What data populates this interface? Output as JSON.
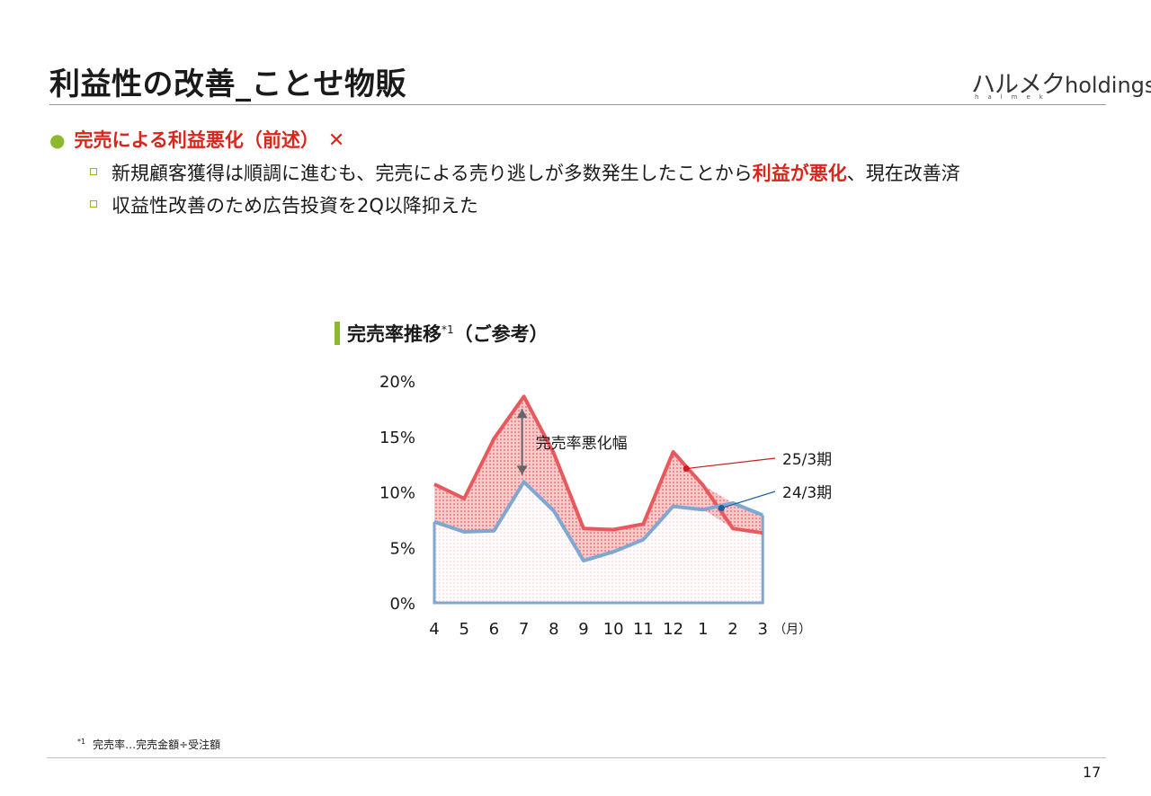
{
  "header": {
    "title": "利益性の改善_ことせ物販",
    "logo_main_jp": "ハルメク",
    "logo_main_en": "holdings",
    "logo_sub": "halmek"
  },
  "body": {
    "main_bullet": "完売による利益悪化（前述）",
    "main_bullet_mark": "✕",
    "sub1_before": "新規顧客獲得は順調に進むも、完売による売り逃しが多数発生したことから",
    "sub1_emph": "利益が悪化",
    "sub1_after": "、現在改善済",
    "sub2": "収益性改善のため広告投資を2Q以降抑えた"
  },
  "chart_section": {
    "title": "完売率推移",
    "title_note": "*1",
    "title_suffix": "（ご参考）"
  },
  "chart_data": {
    "type": "area",
    "categories": [
      "4",
      "5",
      "6",
      "7",
      "8",
      "9",
      "10",
      "11",
      "12",
      "1",
      "2",
      "3"
    ],
    "x_unit": "（月）",
    "y_ticks": [
      "0%",
      "5%",
      "10%",
      "15%",
      "20%"
    ],
    "ylim": [
      0,
      20
    ],
    "series": [
      {
        "name": "25/3期",
        "values": [
          10.7,
          9.4,
          14.8,
          18.6,
          13.5,
          6.7,
          6.6,
          7.1,
          13.6,
          10.6,
          6.7,
          6.3
        ]
      },
      {
        "name": "24/3期",
        "values": [
          7.3,
          6.4,
          6.5,
          10.9,
          8.3,
          3.8,
          4.6,
          5.7,
          8.7,
          8.4,
          9.0,
          7.9
        ]
      }
    ],
    "annotation": "完売率悪化幅",
    "colors": {
      "fy25": "#e8595e",
      "fy24": "#7ea7d1",
      "gap_fill": "#f2b8bb",
      "base_fill": "#fbe9ea"
    },
    "grid": false,
    "legend": "line-callouts-right"
  },
  "footnote": {
    "mark": "*1",
    "text": "完売率…完売金額÷受注額"
  },
  "page_number": "17"
}
